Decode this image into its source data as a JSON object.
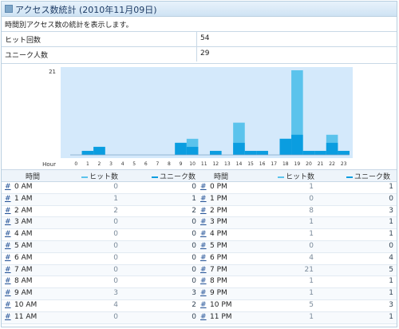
{
  "title": "アクセス数統計 (2010年11月09日)",
  "description": "時間別アクセス数の統計を表示します。",
  "stats": [
    {
      "label": "ヒット回数",
      "value": "54"
    },
    {
      "label": "ユニーク人数",
      "value": "29"
    }
  ],
  "legend": {
    "time": "時間",
    "hits": "ヒット数",
    "unique": "ユニーク数"
  },
  "colors": {
    "hits": "#5bc3ec",
    "unique": "#0a9de0",
    "plot_bg": "#d4e9fb"
  },
  "rows_am": [
    {
      "hour": "0 AM",
      "hits": "0",
      "unique": "0"
    },
    {
      "hour": "1 AM",
      "hits": "1",
      "unique": "1"
    },
    {
      "hour": "2 AM",
      "hits": "2",
      "unique": "2"
    },
    {
      "hour": "3 AM",
      "hits": "0",
      "unique": "0"
    },
    {
      "hour": "4 AM",
      "hits": "0",
      "unique": "0"
    },
    {
      "hour": "5 AM",
      "hits": "0",
      "unique": "0"
    },
    {
      "hour": "6 AM",
      "hits": "0",
      "unique": "0"
    },
    {
      "hour": "7 AM",
      "hits": "0",
      "unique": "0"
    },
    {
      "hour": "8 AM",
      "hits": "0",
      "unique": "0"
    },
    {
      "hour": "9 AM",
      "hits": "3",
      "unique": "3"
    },
    {
      "hour": "10 AM",
      "hits": "4",
      "unique": "2"
    },
    {
      "hour": "11 AM",
      "hits": "0",
      "unique": "0"
    }
  ],
  "rows_pm": [
    {
      "hour": "0 PM",
      "hits": "1",
      "unique": "1"
    },
    {
      "hour": "1 PM",
      "hits": "0",
      "unique": "0"
    },
    {
      "hour": "2 PM",
      "hits": "8",
      "unique": "3"
    },
    {
      "hour": "3 PM",
      "hits": "1",
      "unique": "1"
    },
    {
      "hour": "4 PM",
      "hits": "1",
      "unique": "1"
    },
    {
      "hour": "5 PM",
      "hits": "0",
      "unique": "0"
    },
    {
      "hour": "6 PM",
      "hits": "4",
      "unique": "4"
    },
    {
      "hour": "7 PM",
      "hits": "21",
      "unique": "5"
    },
    {
      "hour": "8 PM",
      "hits": "1",
      "unique": "1"
    },
    {
      "hour": "9 PM",
      "hits": "1",
      "unique": "1"
    },
    {
      "hour": "10 PM",
      "hits": "5",
      "unique": "3"
    },
    {
      "hour": "11 PM",
      "hits": "1",
      "unique": "1"
    }
  ],
  "chart_data": {
    "type": "bar",
    "categories": [
      "0",
      "1",
      "2",
      "3",
      "4",
      "5",
      "6",
      "7",
      "8",
      "9",
      "10",
      "11",
      "12",
      "13",
      "14",
      "15",
      "16",
      "17",
      "18",
      "19",
      "20",
      "21",
      "22",
      "23"
    ],
    "series": [
      {
        "name": "ヒット数",
        "values": [
          0,
          1,
          2,
          0,
          0,
          0,
          0,
          0,
          0,
          3,
          4,
          0,
          1,
          0,
          8,
          1,
          1,
          0,
          4,
          21,
          1,
          1,
          5,
          1
        ]
      },
      {
        "name": "ユニーク数",
        "values": [
          0,
          1,
          2,
          0,
          0,
          0,
          0,
          0,
          0,
          3,
          2,
          0,
          1,
          0,
          3,
          1,
          1,
          0,
          4,
          5,
          1,
          1,
          3,
          1
        ]
      }
    ],
    "ymax_label": "21",
    "xlabel": "Hour",
    "ylim": [
      0,
      21
    ]
  }
}
